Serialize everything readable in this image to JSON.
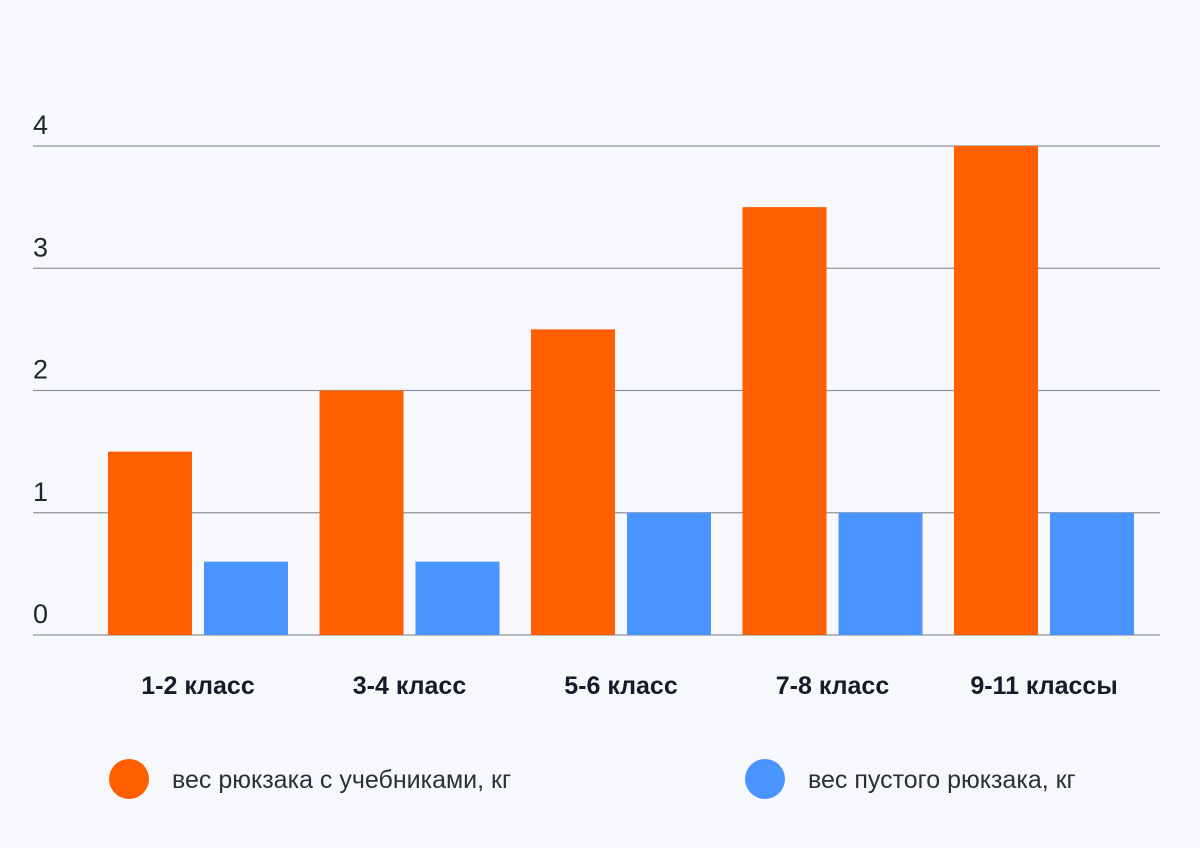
{
  "chart_data": {
    "type": "bar",
    "categories": [
      "1-2 класс",
      "3-4 класс",
      "5-6 класс",
      "7-8 класс",
      "9-11 классы"
    ],
    "series": [
      {
        "name": "вес рюкзака с учебниками, кг",
        "color": "#ff5f00",
        "values": [
          1.5,
          2.0,
          2.5,
          3.5,
          4.0
        ]
      },
      {
        "name": "вес пустого рюкзака, кг",
        "color": "#4a94ff",
        "values": [
          0.6,
          0.6,
          1.0,
          1.0,
          1.0
        ]
      }
    ],
    "yticks": [
      0,
      1,
      2,
      3,
      4
    ],
    "ylim": [
      0,
      4
    ],
    "grid": true,
    "legend_position": "bottom",
    "xlabel": "",
    "ylabel": "",
    "title": ""
  }
}
